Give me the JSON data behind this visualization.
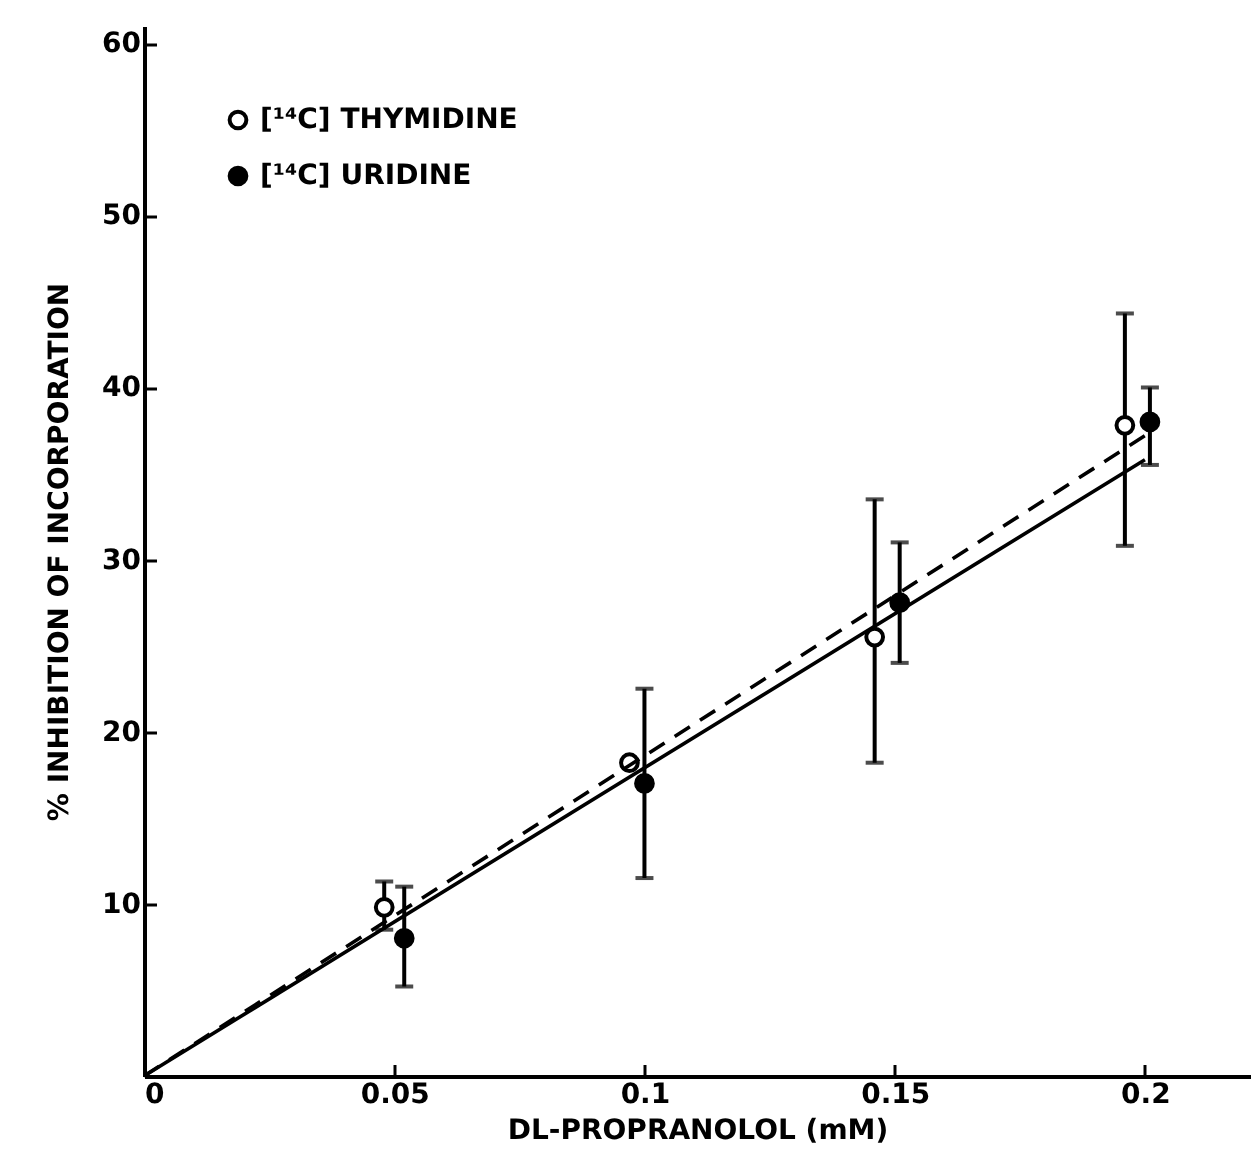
{
  "chart_data": {
    "type": "scatter",
    "xlabel": "DL-PROPRANOLOL (mM)",
    "ylabel": "% INHIBITION OF INCORPORATION",
    "xlim": [
      0,
      0.221
    ],
    "ylim": [
      0,
      61
    ],
    "xticks": [
      0,
      0.05,
      0.1,
      0.15,
      0.2
    ],
    "yticks": [
      10,
      20,
      30,
      40,
      50,
      60
    ],
    "grid": false,
    "legend": "top left",
    "series": [
      {
        "name": "[¹⁴C] THYMIDINE",
        "color": "#000000",
        "marker": "circle",
        "x": [
          0.048,
          0.097,
          0.146,
          0.196
        ],
        "values": [
          9.8,
          18.2,
          25.5,
          37.8
        ],
        "errors": [
          [
            8.5,
            11.3
          ],
          null,
          [
            18.2,
            33.5
          ],
          [
            30.8,
            44.3
          ]
        ]
      },
      {
        "name": "[¹⁴C] URIDINE",
        "color": "#000000",
        "marker": "circle",
        "x": [
          0.052,
          0.1,
          0.151,
          0.201
        ],
        "values": [
          8,
          17,
          27.5,
          38
        ],
        "errors": [
          [
            5.2,
            11
          ],
          [
            11.5,
            22.5
          ],
          [
            24,
            31
          ],
          [
            35.5,
            40
          ]
        ]
      },
      {
        "type": "line",
        "color": "#000000",
        "line_style": "dashed",
        "x": [
          0,
          0.2
        ],
        "values": [
          0,
          37.2
        ]
      },
      {
        "type": "line",
        "color": "#000000",
        "line_style": "solid",
        "x": [
          0,
          0.2
        ],
        "values": [
          0,
          35.8
        ]
      }
    ]
  }
}
